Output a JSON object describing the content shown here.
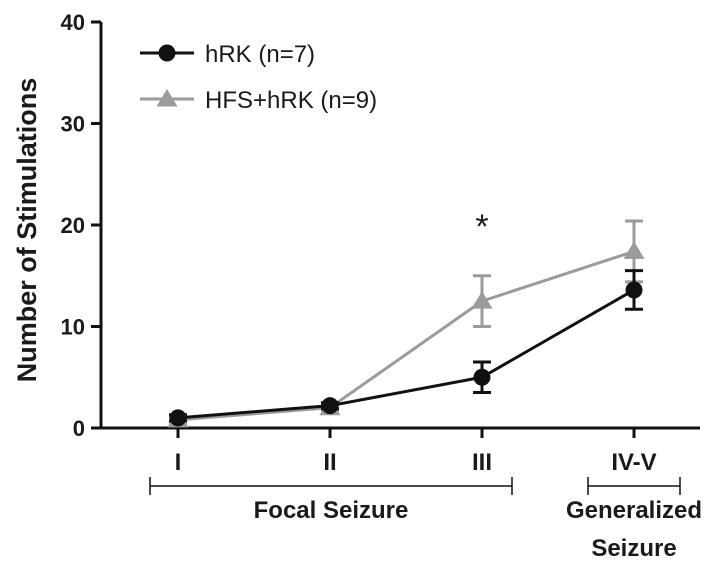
{
  "chart_data": {
    "type": "line",
    "title": "",
    "xlabel": "",
    "ylabel": "Number of Stimulations",
    "ylim": [
      0,
      40
    ],
    "yticks": [
      0,
      10,
      20,
      30,
      40
    ],
    "categories": [
      "I",
      "II",
      "III",
      "IV-V"
    ],
    "series": [
      {
        "name": "hRK (n=7)",
        "color": "#111111",
        "marker": "circle",
        "values": [
          1.0,
          2.2,
          5.0,
          13.6
        ],
        "errors": [
          0.3,
          0.3,
          1.5,
          1.9
        ]
      },
      {
        "name": "HFS+hRK (n=9)",
        "color": "#9b9b9b",
        "marker": "triangle",
        "values": [
          0.8,
          2.0,
          12.5,
          17.4
        ],
        "errors": [
          0.3,
          0.3,
          2.5,
          3.0
        ]
      }
    ],
    "annotations": [
      {
        "text": "*",
        "category": "III"
      }
    ],
    "groups": [
      {
        "label_lines": [
          "Focal Seizure"
        ],
        "from": "I",
        "to": "III"
      },
      {
        "label_lines": [
          "Generalized",
          "Seizure"
        ],
        "from": "IV-V",
        "to": "IV-V"
      }
    ],
    "legend_position": "top-left",
    "grid": false
  }
}
